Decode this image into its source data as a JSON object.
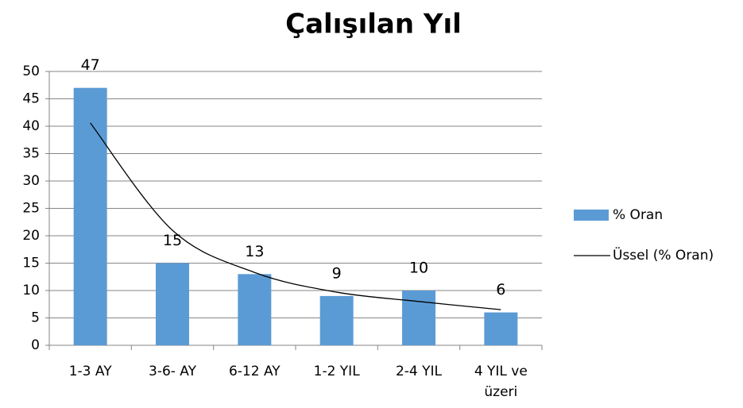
{
  "chart_data": {
    "type": "bar",
    "title": "Çalışılan Yıl",
    "categories": [
      "1-3 AY",
      "3-6- AY",
      "6-12 AY",
      "1-2 YIL",
      "2-4 YIL",
      "4 YIL ve üzeri"
    ],
    "series": [
      {
        "name": "% Oran",
        "color": "#5b9bd5",
        "type": "bar",
        "values": [
          47,
          15,
          13,
          9,
          10,
          6
        ]
      },
      {
        "name": "Üssel (% Oran)",
        "color": "#000000",
        "type": "line",
        "values": [
          40.6,
          21,
          13.3,
          9.7,
          8,
          6.5
        ]
      }
    ],
    "ylim": [
      0,
      50
    ],
    "yticks": [
      0,
      5,
      10,
      15,
      20,
      25,
      30,
      35,
      40,
      45,
      50
    ],
    "grid": true,
    "legend": "right"
  }
}
